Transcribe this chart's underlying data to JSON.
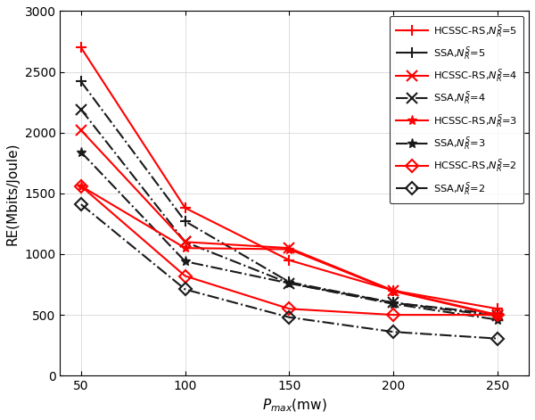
{
  "x": [
    50,
    100,
    150,
    200,
    250
  ],
  "hcssc_5": [
    2700,
    1380,
    950,
    700,
    550
  ],
  "ssa_5": [
    2420,
    1270,
    770,
    600,
    505
  ],
  "ssa_4": [
    2190,
    1100,
    760,
    600,
    490
  ],
  "hcssc_4": [
    2020,
    1100,
    1050,
    700,
    500
  ],
  "ssa_3": [
    1840,
    940,
    760,
    590,
    460
  ],
  "hcssc_3": [
    1560,
    1050,
    1040,
    695,
    495
  ],
  "hcssc_2": [
    1560,
    820,
    550,
    500,
    500
  ],
  "ssa_2": [
    1410,
    710,
    480,
    360,
    305
  ],
  "xlabel": "$P_{max}$(mw)",
  "ylabel": "RE(Mbits/Joule)",
  "xlim": [
    40,
    265
  ],
  "ylim": [
    0,
    3000
  ],
  "xticks": [
    50,
    100,
    150,
    200,
    250
  ],
  "yticks": [
    0,
    500,
    1000,
    1500,
    2000,
    2500,
    3000
  ],
  "red_color": "#FF0000",
  "black_color": "#1a1a1a",
  "figsize": [
    6.0,
    4.71
  ],
  "dpi": 100
}
